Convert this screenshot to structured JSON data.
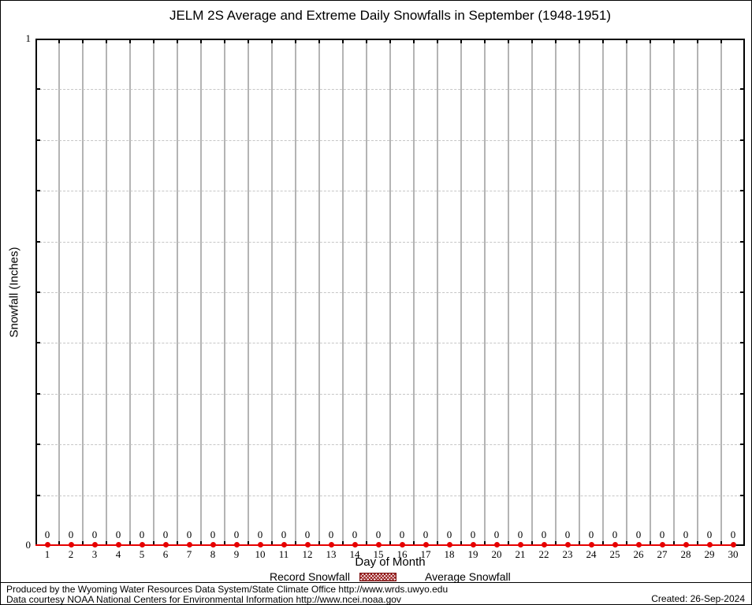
{
  "title": "JELM 2S Average and Extreme Daily Snowfalls in September (1948-1951)",
  "y_axis": {
    "label": "Snowfall (Inches)",
    "min_label": "0",
    "max_label": "1"
  },
  "x_axis": {
    "label": "Day of Month"
  },
  "legend": [
    {
      "label": "Record Snowfall",
      "swatch": "hatched-box",
      "color": "#8b0000"
    },
    {
      "label": "Average Snowfall",
      "swatch": "line-with-point",
      "color": "#e60000"
    }
  ],
  "footer": {
    "line1": "Produced by the Wyoming Water Resources Data System/State Climate Office http://www.wrds.uwyo.edu",
    "line2": "Data courtesy NOAA National Centers for Environmental Information http://www.ncei.noaa.gov",
    "created": "Created: 26-Sep-2024"
  },
  "colors": {
    "series_red": "#e60000",
    "record_dark_red": "#8b0000",
    "grid_vertical": "#b4b4b4",
    "grid_horizontal_dashed": "#c6c6c6",
    "axis": "#000000",
    "background": "#ffffff"
  },
  "chart_data": {
    "type": "line",
    "title": "JELM 2S Average and Extreme Daily Snowfalls in September (1948-1951)",
    "xlabel": "Day of Month",
    "ylabel": "Snowfall (Inches)",
    "ylim": [
      0,
      1
    ],
    "ytick_labels": [
      "0",
      "1"
    ],
    "y_minor_grid_interval": 0.1,
    "grid": {
      "vertical_solid_between_days": true,
      "horizontal_dashed": true
    },
    "legend_position": "bottom-center",
    "x": [
      1,
      2,
      3,
      4,
      5,
      6,
      7,
      8,
      9,
      10,
      11,
      12,
      13,
      14,
      15,
      16,
      17,
      18,
      19,
      20,
      21,
      22,
      23,
      24,
      25,
      26,
      27,
      28,
      29,
      30
    ],
    "series": [
      {
        "name": "Record Snowfall",
        "type": "bar",
        "values": [
          0,
          0,
          0,
          0,
          0,
          0,
          0,
          0,
          0,
          0,
          0,
          0,
          0,
          0,
          0,
          0,
          0,
          0,
          0,
          0,
          0,
          0,
          0,
          0,
          0,
          0,
          0,
          0,
          0,
          0
        ]
      },
      {
        "name": "Average Snowfall",
        "type": "line",
        "values": [
          0,
          0,
          0,
          0,
          0,
          0,
          0,
          0,
          0,
          0,
          0,
          0,
          0,
          0,
          0,
          0,
          0,
          0,
          0,
          0,
          0,
          0,
          0,
          0,
          0,
          0,
          0,
          0,
          0,
          0
        ]
      }
    ],
    "data_labels": [
      "0",
      "0",
      "0",
      "0",
      "0",
      "0",
      "0",
      "0",
      "0",
      "0",
      "0",
      "0",
      "0",
      "0",
      "0",
      "0",
      "0",
      "0",
      "0",
      "0",
      "0",
      "0",
      "0",
      "0",
      "0",
      "0",
      "0",
      "0",
      "0",
      "0"
    ]
  }
}
